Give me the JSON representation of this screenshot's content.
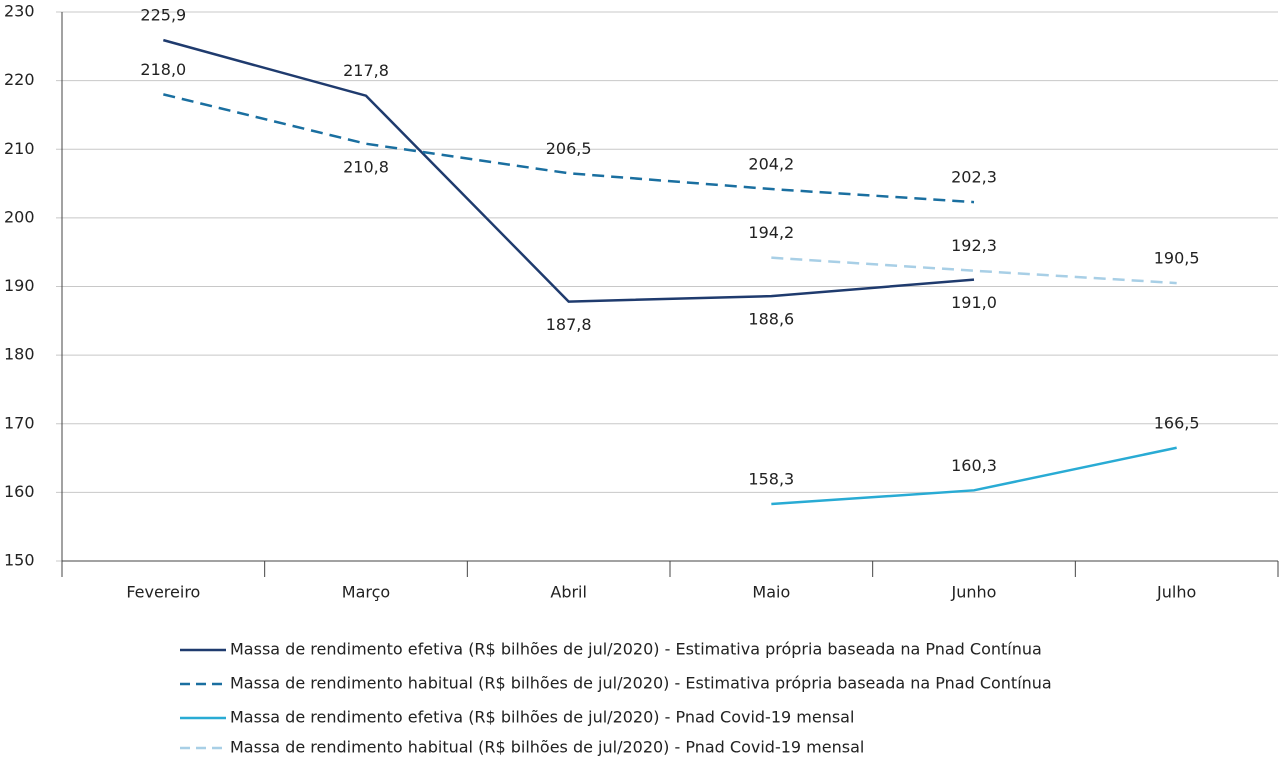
{
  "chart_data": {
    "type": "line",
    "categories": [
      "Fevereiro",
      "Março",
      "Abril",
      "Maio",
      "Junho",
      "Julho"
    ],
    "ylim": [
      150,
      230
    ],
    "yticks": [
      150,
      160,
      170,
      180,
      190,
      200,
      210,
      220,
      230
    ],
    "grid": true,
    "series": [
      {
        "name": "Massa de rendimento efetiva (R$ bilhões de jul/2020) - Estimativa própria baseada na Pnad Contínua",
        "color": "#1f3b6e",
        "dashed": false,
        "values": [
          225.9,
          217.8,
          187.8,
          188.6,
          191.0,
          null
        ],
        "value_labels": [
          "225,9",
          "217,8",
          "187,8",
          "188,6",
          "191,0",
          null
        ]
      },
      {
        "name": "Massa de rendimento habitual (R$ bilhões de jul/2020) - Estimativa própria baseada na Pnad Contínua",
        "color": "#1a6fa0",
        "dashed": true,
        "values": [
          218.0,
          210.8,
          206.5,
          204.2,
          202.3,
          null
        ],
        "value_labels": [
          "218,0",
          "210,8",
          "206,5",
          "204,2",
          "202,3",
          null
        ]
      },
      {
        "name": "Massa de rendimento efetiva (R$ bilhões de jul/2020) - Pnad Covid-19 mensal",
        "color": "#29abd4",
        "dashed": false,
        "values": [
          null,
          null,
          null,
          158.3,
          160.3,
          166.5
        ],
        "value_labels": [
          null,
          null,
          null,
          "158,3",
          "160,3",
          "166,5"
        ]
      },
      {
        "name": "Massa de rendimento habitual (R$ bilhões de jul/2020) - Pnad Covid-19 mensal",
        "color": "#a8cfe6",
        "dashed": true,
        "values": [
          null,
          null,
          null,
          194.2,
          192.3,
          190.5
        ],
        "value_labels": [
          null,
          null,
          null,
          "194,2",
          "192,3",
          "190,5"
        ]
      }
    ]
  }
}
